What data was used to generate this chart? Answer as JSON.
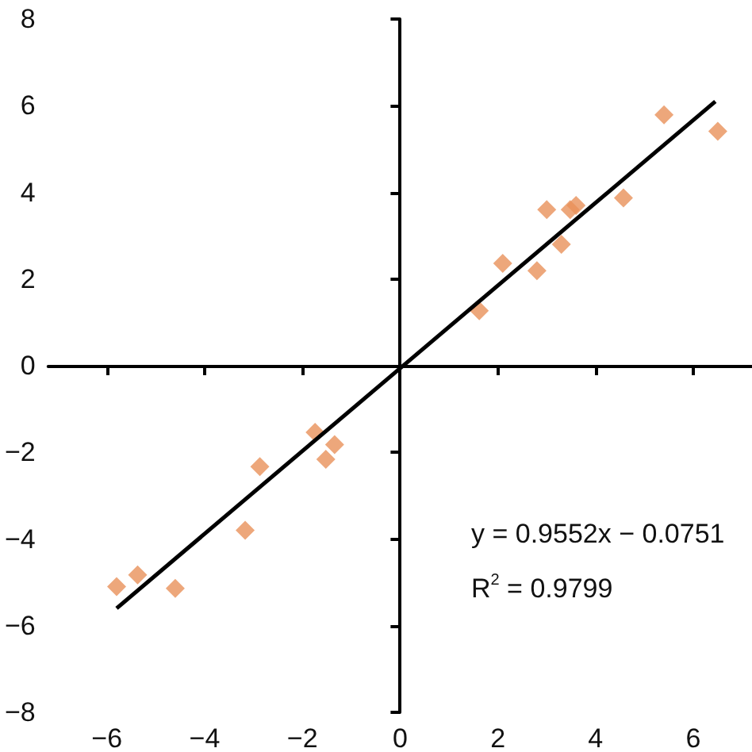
{
  "chart_data": {
    "type": "scatter",
    "xlim": [
      -7.2,
      7.2
    ],
    "xticks": [
      -6,
      -4,
      -2,
      0,
      2,
      4,
      6
    ],
    "ylim": [
      -8,
      8
    ],
    "yticks": [
      -8,
      -6,
      -4,
      -2,
      0,
      2,
      4,
      6,
      8
    ],
    "marker": "diamond",
    "annotations": [
      "y = 0.9552x − 0.0751",
      "R$^{2}$ = 0.9799"
    ],
    "series": [
      {
        "color": "#e8915a",
        "x": [
          1.62,
          2.1,
          2.8,
          3.0,
          3.3,
          3.48,
          3.6,
          4.57,
          5.4,
          6.5,
          -5.8,
          -5.37,
          -4.6,
          -3.17,
          -2.87,
          -1.74,
          -1.52,
          -1.34
        ],
        "values": [
          1.27,
          2.36,
          2.19,
          3.6,
          2.8,
          3.6,
          3.7,
          3.87,
          5.79,
          5.41,
          -5.1,
          -4.83,
          -5.14,
          -3.8,
          -2.33,
          -1.54,
          -2.16,
          -1.82
        ]
      },
      {
        "type": "line",
        "color": "#000000",
        "marker": "none",
        "line_style": "solid",
        "x": [
          -5.8,
          6.45
        ],
        "values": [
          -5.6,
          6.1
        ]
      }
    ]
  }
}
